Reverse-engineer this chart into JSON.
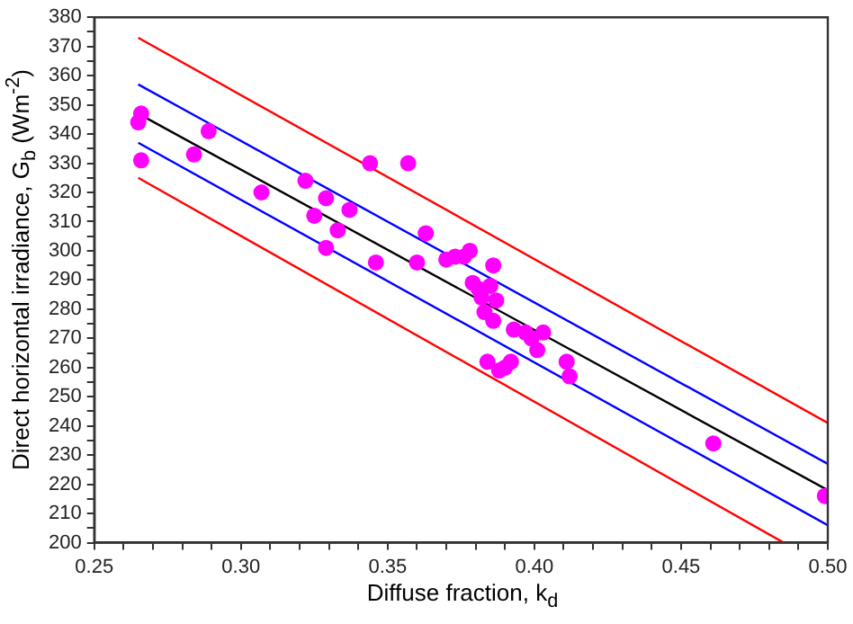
{
  "chart_data": {
    "type": "scatter",
    "xlabel": "Diffuse fraction, k$_{d}$",
    "ylabel": "Direct horizontal irradiance, G$_{b}$ (Wm$^{-2}$)",
    "xlim": [
      0.25,
      0.5
    ],
    "ylim": [
      200,
      380
    ],
    "xticks": [
      0.25,
      {
        "value": 0.26,
        "label": null
      },
      {
        "value": 0.27,
        "label": null
      },
      {
        "value": 0.28,
        "label": null
      },
      {
        "value": 0.29,
        "label": null
      },
      {
        "value": 0.3,
        "label": "0.30"
      },
      {
        "value": 0.31,
        "label": null
      },
      {
        "value": 0.32,
        "label": null
      },
      {
        "value": 0.33,
        "label": null
      },
      {
        "value": 0.34,
        "label": null
      },
      0.35,
      {
        "value": 0.36,
        "label": null
      },
      {
        "value": 0.37,
        "label": null
      },
      {
        "value": 0.38,
        "label": null
      },
      {
        "value": 0.39,
        "label": null
      },
      {
        "value": 0.4,
        "label": "0.40"
      },
      {
        "value": 0.41,
        "label": null
      },
      {
        "value": 0.42,
        "label": null
      },
      {
        "value": 0.43,
        "label": null
      },
      {
        "value": 0.44,
        "label": null
      },
      0.45,
      {
        "value": 0.46,
        "label": null
      },
      {
        "value": 0.47,
        "label": null
      },
      {
        "value": 0.48,
        "label": null
      },
      {
        "value": 0.49,
        "label": null
      },
      {
        "value": 0.5,
        "label": "0.50"
      }
    ],
    "yticks": [
      200,
      {
        "value": 205,
        "label": null
      },
      210,
      {
        "value": 215,
        "label": null
      },
      220,
      {
        "value": 225,
        "label": null
      },
      230,
      {
        "value": 235,
        "label": null
      },
      240,
      {
        "value": 245,
        "label": null
      },
      250,
      {
        "value": 255,
        "label": null
      },
      260,
      {
        "value": 265,
        "label": null
      },
      270,
      {
        "value": 275,
        "label": null
      },
      280,
      {
        "value": 285,
        "label": null
      },
      290,
      {
        "value": 295,
        "label": null
      },
      300,
      {
        "value": 305,
        "label": null
      },
      310,
      {
        "value": 315,
        "label": null
      },
      320,
      {
        "value": 325,
        "label": null
      },
      330,
      {
        "value": 335,
        "label": null
      },
      340,
      {
        "value": 345,
        "label": null
      },
      350,
      {
        "value": 355,
        "label": null
      },
      360,
      {
        "value": 365,
        "label": null
      },
      370,
      {
        "value": 375,
        "label": null
      },
      380
    ],
    "grid": false,
    "legend": false,
    "series": [
      {
        "type": "scatter",
        "marker": "circle",
        "color": "#ff00ff",
        "x": [
          0.265,
          0.266,
          0.266,
          0.284,
          0.289,
          0.307,
          0.322,
          0.325,
          0.329,
          0.329,
          0.333,
          0.337,
          0.344,
          0.346,
          0.357,
          0.36,
          0.363,
          0.37,
          0.373,
          0.376,
          0.378,
          0.379,
          0.381,
          0.382,
          0.383,
          0.384,
          0.385,
          0.386,
          0.386,
          0.387,
          0.388,
          0.39,
          0.392,
          0.393,
          0.397,
          0.399,
          0.401,
          0.403,
          0.411,
          0.412,
          0.461,
          0.499
        ],
        "values": [
          344,
          347,
          331,
          333,
          341,
          320,
          324,
          312,
          318,
          301,
          307,
          314,
          330,
          296,
          330,
          296,
          306,
          297,
          298,
          298,
          300,
          289,
          287,
          284,
          279,
          262,
          288,
          276,
          295,
          283,
          259,
          260,
          262,
          273,
          272,
          270,
          266,
          272,
          262,
          257,
          234,
          216
        ]
      },
      {
        "type": "line",
        "marker": "none",
        "color": "#000000",
        "x": [
          0.265,
          0.5
        ],
        "values": [
          347,
          218
        ]
      },
      {
        "type": "line",
        "marker": "none",
        "color": "#0000ff",
        "x": [
          0.265,
          0.5
        ],
        "values": [
          357,
          227
        ]
      },
      {
        "type": "line",
        "marker": "none",
        "color": "#0000ff",
        "x": [
          0.265,
          0.5
        ],
        "values": [
          337,
          206
        ]
      },
      {
        "type": "line",
        "marker": "none",
        "color": "#ff0000",
        "x": [
          0.265,
          0.5
        ],
        "values": [
          373,
          241
        ]
      },
      {
        "type": "line",
        "marker": "none",
        "color": "#ff0000",
        "x": [
          0.265,
          0.485
        ],
        "values": [
          325,
          200
        ]
      }
    ]
  }
}
